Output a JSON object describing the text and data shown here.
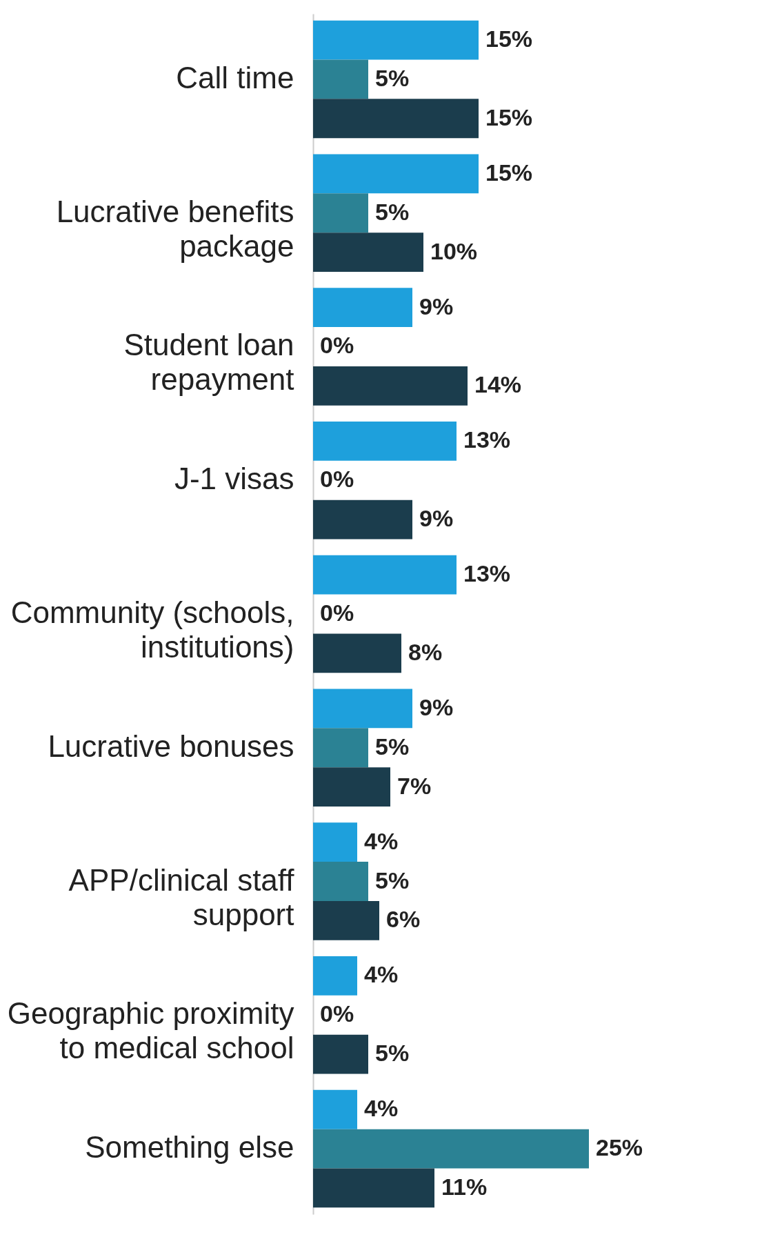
{
  "chart_data": {
    "type": "bar",
    "orientation": "horizontal",
    "categories": [
      "Call time",
      "Lucrative benefits package",
      "Student loan repayment",
      "J-1 visas",
      "Community (schools, institutions)",
      "Lucrative bonuses",
      "APP/clinical staff support",
      "Geographic proximity to medical school",
      "Something else"
    ],
    "series": [
      {
        "color": "#1ea0dc",
        "values": [
          15,
          15,
          9,
          13,
          13,
          9,
          4,
          4,
          4
        ],
        "value_labels": [
          "15%",
          "15%",
          "9%",
          "13%",
          "13%",
          "9%",
          "4%",
          "4%",
          "4%"
        ]
      },
      {
        "color": "#2b8294",
        "values": [
          5,
          5,
          0,
          0,
          0,
          5,
          5,
          0,
          25
        ],
        "value_labels": [
          "5%",
          "5%",
          "0%",
          "0%",
          "0%",
          "5%",
          "5%",
          "0%",
          "25%"
        ]
      },
      {
        "color": "#1b3d4d",
        "values": [
          15,
          10,
          14,
          9,
          8,
          7,
          6,
          5,
          11
        ],
        "value_labels": [
          "15%",
          "10%",
          "14%",
          "9%",
          "8%",
          "7%",
          "6%",
          "5%",
          "11%"
        ]
      }
    ]
  }
}
